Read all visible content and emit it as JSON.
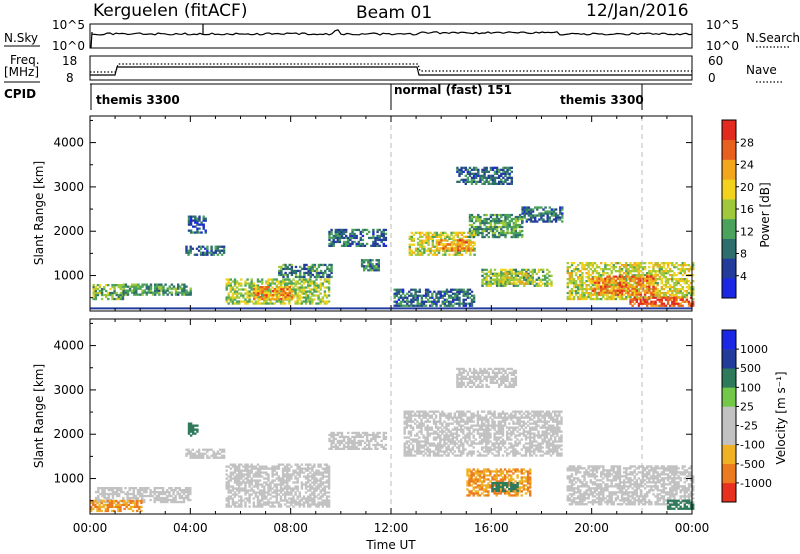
{
  "header": {
    "station": "Kerguelen (fitACF)",
    "beam": "Beam 01",
    "date": "12/Jan/2016"
  },
  "panels": {
    "noise": {
      "left_label": "N.Sky",
      "right_label": "N.Search",
      "ticks": [
        "10^5",
        "10^0"
      ]
    },
    "freq": {
      "left_label_1": "Freq.",
      "left_label_2": "[MHz]",
      "right_label": "Nave",
      "left_ticks": [
        "18",
        "8"
      ],
      "right_ticks": [
        "60",
        "0"
      ]
    },
    "cpid": {
      "label": "CPID",
      "segments": [
        "themis 3300",
        "normal (fast) 151",
        "themis 3300"
      ]
    }
  },
  "colors": {
    "power_scale": [
      "#1a28e6",
      "#233c9c",
      "#2e6e6c",
      "#4aa25c",
      "#9fc93a",
      "#f2d21c",
      "#f2a61c",
      "#e8601e",
      "#e22a1e"
    ],
    "velocity_scale": [
      "#1a28e6",
      "#233c9c",
      "#2e7a5a",
      "#73c84a",
      "#c2c2c2",
      "#c2c2c2",
      "#f0b224",
      "#ec7a1e",
      "#e8301e"
    ],
    "velocity_dominant": "#c2c2c2",
    "axis": "#000000"
  },
  "chart_data": [
    {
      "type": "heatmap",
      "name": "power",
      "ylabel": "Slant Range [km]",
      "ylim": [
        200,
        4600
      ],
      "yticks": [
        "1000",
        "2000",
        "3000",
        "4000"
      ],
      "colorbar": {
        "label": "Power [dB]",
        "ticks": [
          "4",
          "8",
          "12",
          "16",
          "20",
          "24",
          "28"
        ],
        "range": [
          0,
          32
        ]
      },
      "regions": [
        {
          "t": [
            0.1,
            1.3
          ],
          "r": [
            450,
            800
          ],
          "v": 14
        },
        {
          "t": [
            1.3,
            4.0
          ],
          "r": [
            550,
            800
          ],
          "v": 12
        },
        {
          "t": [
            3.8,
            5.3
          ],
          "r": [
            1450,
            1650
          ],
          "v": 8
        },
        {
          "t": [
            3.9,
            4.6
          ],
          "r": [
            1950,
            2350
          ],
          "v": 7
        },
        {
          "t": [
            5.4,
            9.5
          ],
          "r": [
            350,
            900
          ],
          "v": 16
        },
        {
          "t": [
            6.5,
            8.0
          ],
          "r": [
            450,
            750
          ],
          "v": 24
        },
        {
          "t": [
            7.5,
            9.6
          ],
          "r": [
            950,
            1250
          ],
          "v": 10
        },
        {
          "t": [
            9.5,
            11.8
          ],
          "r": [
            1650,
            2050
          ],
          "v": 8
        },
        {
          "t": [
            10.8,
            11.5
          ],
          "r": [
            1100,
            1350
          ],
          "v": 10
        },
        {
          "t": [
            12.7,
            15.3
          ],
          "r": [
            1450,
            1950
          ],
          "v": 18
        },
        {
          "t": [
            13.8,
            15.3
          ],
          "r": [
            1550,
            1800
          ],
          "v": 24
        },
        {
          "t": [
            15.1,
            17.2
          ],
          "r": [
            1850,
            2350
          ],
          "v": 12
        },
        {
          "t": [
            17.2,
            18.8
          ],
          "r": [
            2200,
            2550
          ],
          "v": 8
        },
        {
          "t": [
            14.6,
            16.8
          ],
          "r": [
            3050,
            3450
          ],
          "v": 8
        },
        {
          "t": [
            15.6,
            18.4
          ],
          "r": [
            750,
            1150
          ],
          "v": 14
        },
        {
          "t": [
            16.1,
            17.6
          ],
          "r": [
            800,
            1050
          ],
          "v": 18
        },
        {
          "t": [
            12.1,
            15.3
          ],
          "r": [
            300,
            700
          ],
          "v": 8
        },
        {
          "t": [
            19.0,
            24.0
          ],
          "r": [
            450,
            1300
          ],
          "v": 18
        },
        {
          "t": [
            20.0,
            22.5
          ],
          "r": [
            550,
            1000
          ],
          "v": 25
        },
        {
          "t": [
            21.5,
            24.0
          ],
          "r": [
            300,
            500
          ],
          "v": 28
        }
      ]
    },
    {
      "type": "heatmap",
      "name": "velocity",
      "xlabel": "Time UT",
      "ylabel": "Slant Range [km]",
      "ylim": [
        200,
        4600
      ],
      "xlim": [
        0,
        24
      ],
      "xticks": [
        "00:00",
        "04:00",
        "08:00",
        "12:00",
        "16:00",
        "20:00",
        "00:00"
      ],
      "yticks": [
        "1000",
        "2000",
        "3000",
        "4000"
      ],
      "colorbar": {
        "label": "Velocity [m s⁻¹]",
        "ticks": [
          "1000",
          "500",
          "100",
          "25",
          "-25",
          "-100",
          "-500",
          "-1000"
        ]
      },
      "regions": [
        {
          "t": [
            0.2,
            4.0
          ],
          "r": [
            450,
            800
          ],
          "v": 0
        },
        {
          "t": [
            3.8,
            5.3
          ],
          "r": [
            1450,
            1650
          ],
          "v": 0
        },
        {
          "t": [
            3.9,
            4.3
          ],
          "r": [
            1950,
            2250
          ],
          "v": 200
        },
        {
          "t": [
            5.4,
            9.5
          ],
          "r": [
            350,
            1300
          ],
          "v": 0
        },
        {
          "t": [
            9.5,
            11.8
          ],
          "r": [
            1650,
            2050
          ],
          "v": 0
        },
        {
          "t": [
            12.5,
            18.8
          ],
          "r": [
            1500,
            2500
          ],
          "v": 0
        },
        {
          "t": [
            14.6,
            17.0
          ],
          "r": [
            3050,
            3500
          ],
          "v": 0
        },
        {
          "t": [
            15.0,
            17.5
          ],
          "r": [
            600,
            1200
          ],
          "v": -60
        },
        {
          "t": [
            16.0,
            17.0
          ],
          "r": [
            700,
            900
          ],
          "v": 200
        },
        {
          "t": [
            19.0,
            24.0
          ],
          "r": [
            400,
            1300
          ],
          "v": 0
        },
        {
          "t": [
            23.0,
            24.0
          ],
          "r": [
            300,
            500
          ],
          "v": 150
        },
        {
          "t": [
            0.0,
            2.0
          ],
          "r": [
            250,
            500
          ],
          "v": -60
        }
      ]
    }
  ]
}
